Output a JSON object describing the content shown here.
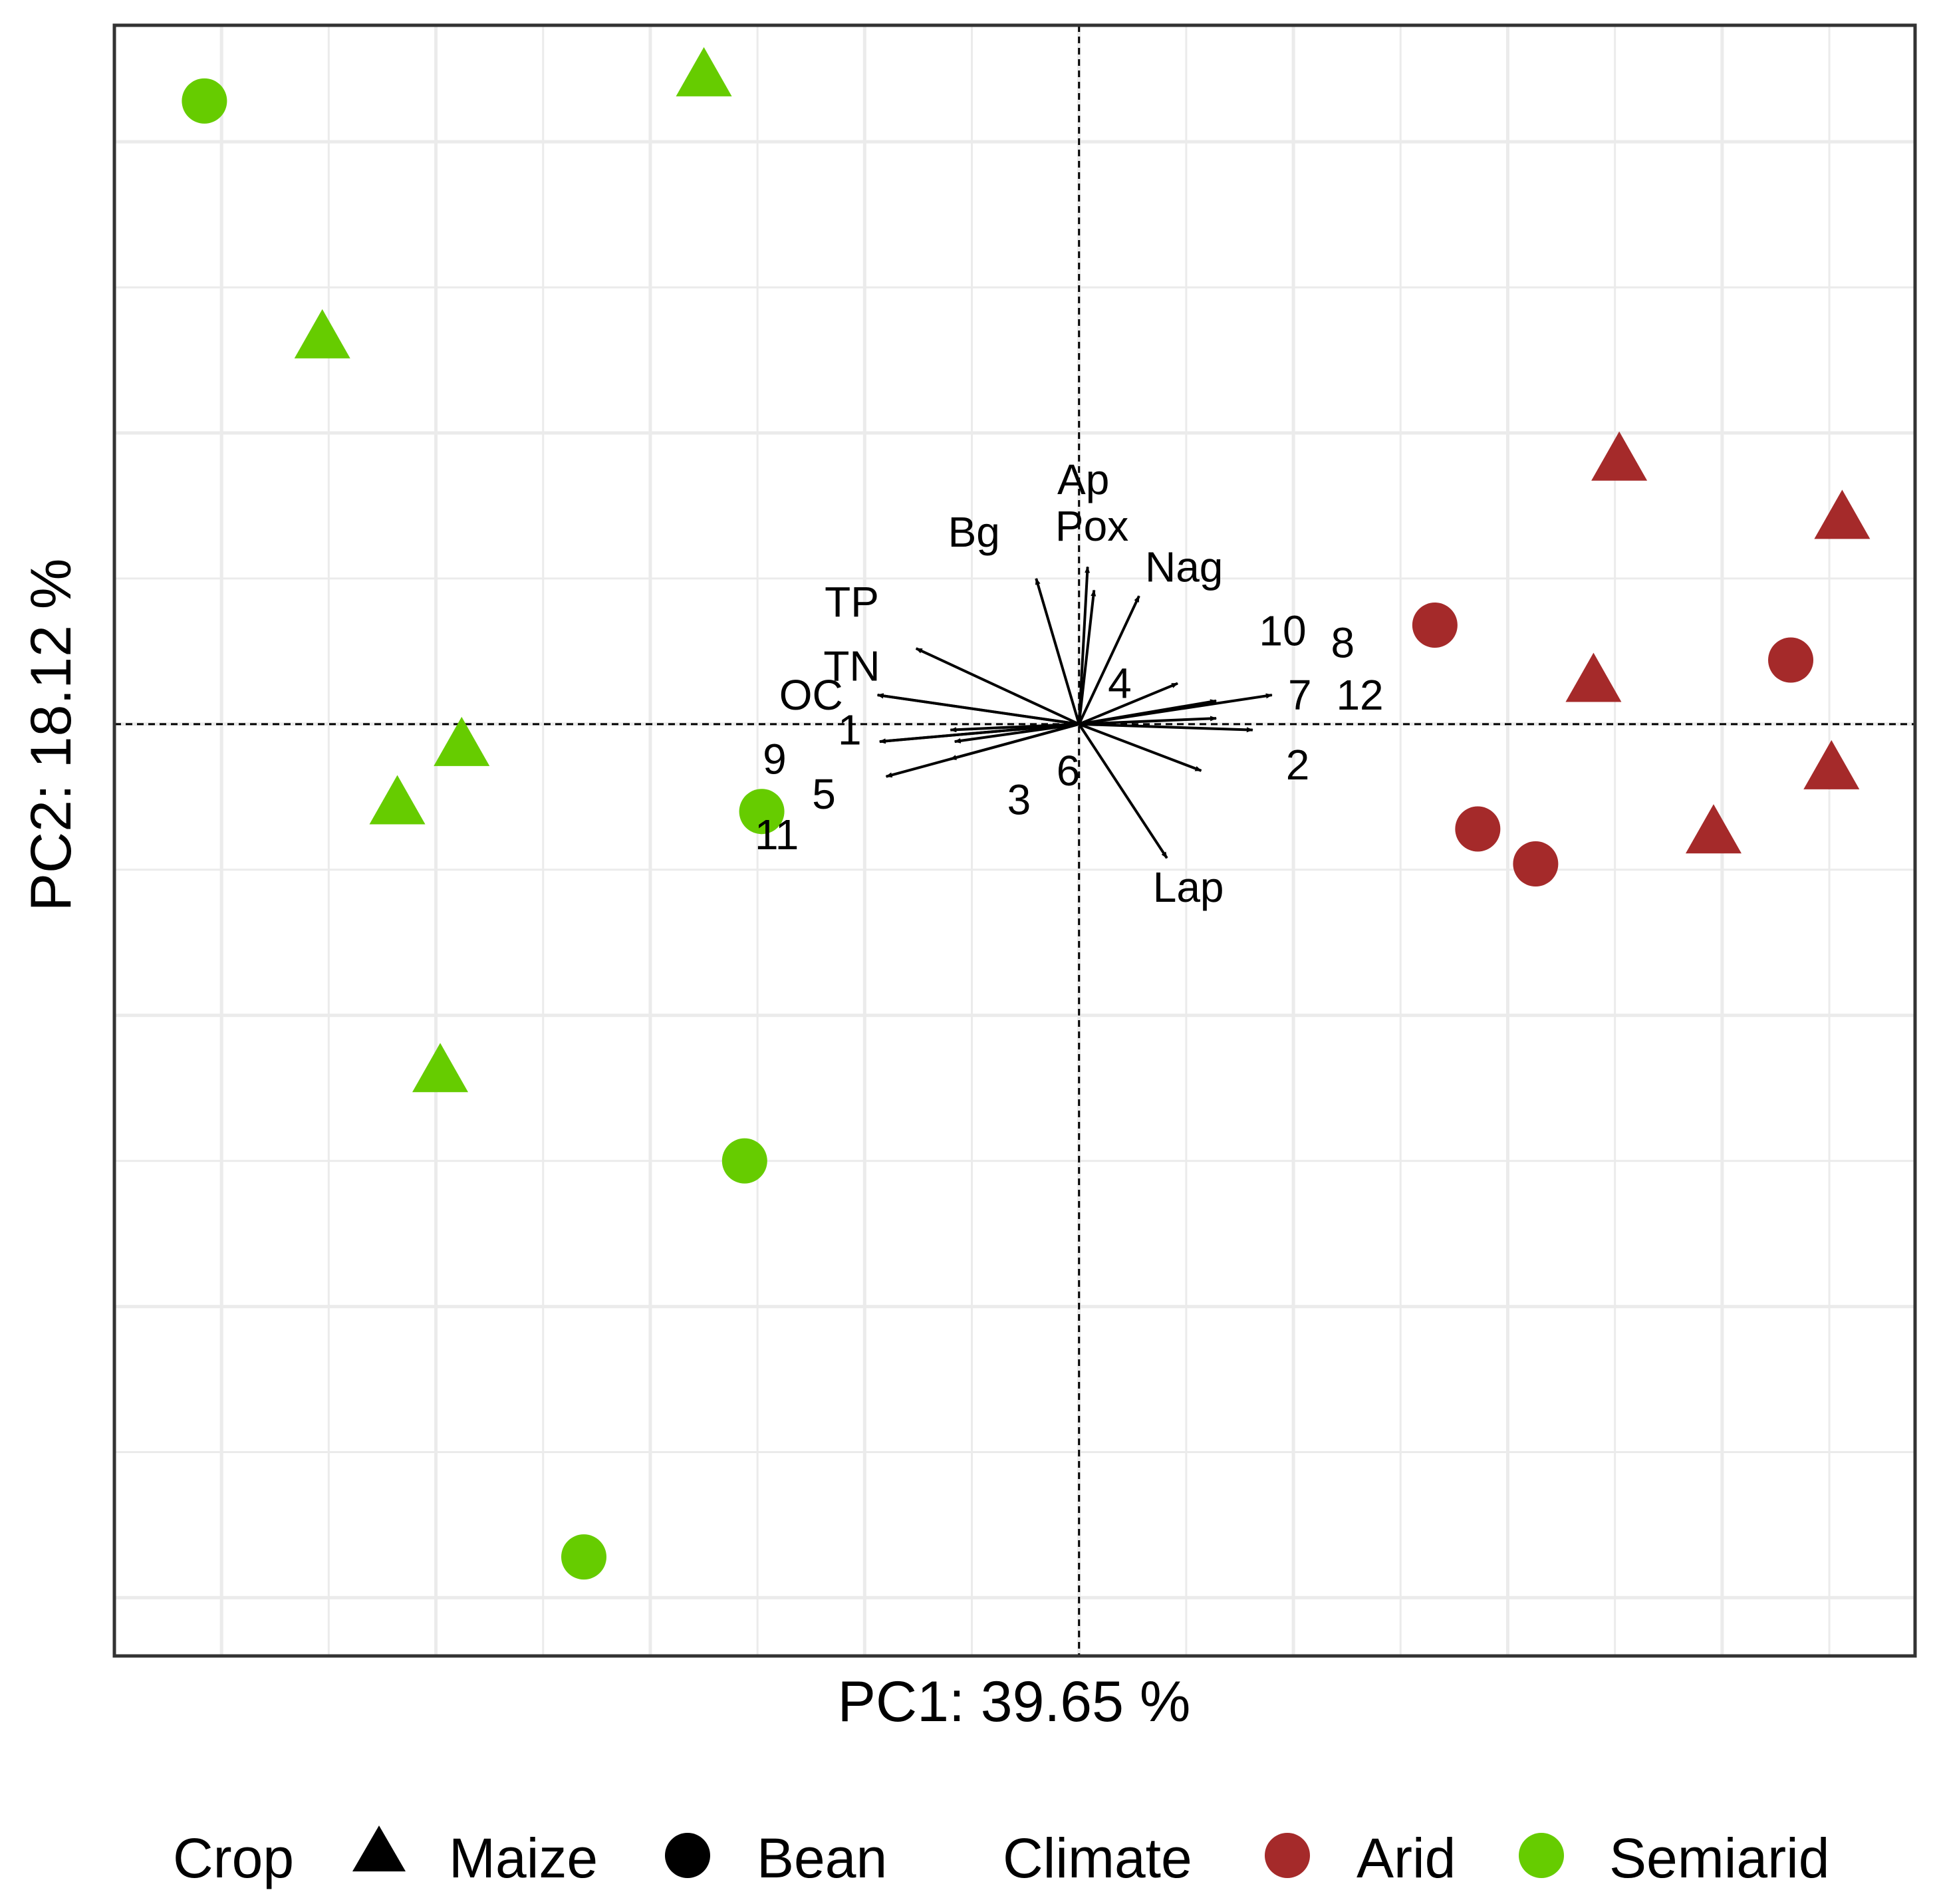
{
  "chart_data": {
    "type": "scatter",
    "subtype": "pca-biplot",
    "title": "",
    "xlabel": "PC1: 39.65 %",
    "ylabel": "PC2: 18.12 %",
    "xlim": [
      -4.5,
      3.9
    ],
    "ylim": [
      -1.6,
      1.2
    ],
    "grid": true,
    "reference_lines": {
      "x": 0,
      "y": 0,
      "style": "dashed"
    },
    "colors": {
      "Arid": "#a52a2a",
      "Semiarid": "#66cc00",
      "arrow": "#000000",
      "grid": "#ebebeb",
      "border": "#333333"
    },
    "legend": {
      "position": "bottom",
      "crop_title": "Crop",
      "crop_items": [
        {
          "label": "Maize",
          "shape": "triangle"
        },
        {
          "label": "Bean",
          "shape": "circle"
        }
      ],
      "climate_title": "Climate",
      "climate_items": [
        {
          "label": "Arid",
          "color": "#a52a2a"
        },
        {
          "label": "Semiarid",
          "color": "#66cc00"
        }
      ]
    },
    "points": [
      {
        "x": -4.08,
        "y": 1.07,
        "crop": "Bean",
        "climate": "Semiarid"
      },
      {
        "x": -1.75,
        "y": 1.11,
        "crop": "Maize",
        "climate": "Semiarid"
      },
      {
        "x": -3.53,
        "y": 0.66,
        "crop": "Maize",
        "climate": "Semiarid"
      },
      {
        "x": -2.88,
        "y": -0.04,
        "crop": "Maize",
        "climate": "Semiarid"
      },
      {
        "x": -3.18,
        "y": -0.14,
        "crop": "Maize",
        "climate": "Semiarid"
      },
      {
        "x": -1.48,
        "y": -0.15,
        "crop": "Bean",
        "climate": "Semiarid"
      },
      {
        "x": -2.98,
        "y": -0.6,
        "crop": "Maize",
        "climate": "Semiarid"
      },
      {
        "x": -1.56,
        "y": -0.75,
        "crop": "Bean",
        "climate": "Semiarid"
      },
      {
        "x": -2.31,
        "y": -1.43,
        "crop": "Bean",
        "climate": "Semiarid"
      },
      {
        "x": 2.52,
        "y": 0.45,
        "crop": "Maize",
        "climate": "Arid"
      },
      {
        "x": 3.56,
        "y": 0.35,
        "crop": "Maize",
        "climate": "Arid"
      },
      {
        "x": 1.66,
        "y": 0.17,
        "crop": "Bean",
        "climate": "Arid"
      },
      {
        "x": 3.32,
        "y": 0.11,
        "crop": "Bean",
        "climate": "Arid"
      },
      {
        "x": 2.4,
        "y": 0.07,
        "crop": "Maize",
        "climate": "Arid"
      },
      {
        "x": 3.51,
        "y": -0.08,
        "crop": "Maize",
        "climate": "Arid"
      },
      {
        "x": 2.96,
        "y": -0.19,
        "crop": "Maize",
        "climate": "Arid"
      },
      {
        "x": 1.86,
        "y": -0.18,
        "crop": "Bean",
        "climate": "Arid"
      },
      {
        "x": 2.13,
        "y": -0.24,
        "crop": "Bean",
        "climate": "Arid"
      }
    ],
    "loadings": [
      {
        "label": "Ap",
        "x": 0.04,
        "y": 0.27,
        "lx": 0.02,
        "ly": 0.42
      },
      {
        "label": "Pox",
        "x": 0.07,
        "y": 0.23,
        "lx": 0.06,
        "ly": 0.34
      },
      {
        "label": "Bg",
        "x": -0.2,
        "y": 0.25,
        "lx": -0.49,
        "ly": 0.33
      },
      {
        "label": "Nag",
        "x": 0.28,
        "y": 0.22,
        "lx": 0.49,
        "ly": 0.27
      },
      {
        "label": "TP",
        "x": -0.76,
        "y": 0.13,
        "lx": -1.06,
        "ly": 0.21
      },
      {
        "label": "TN",
        "x": -0.94,
        "y": 0.05,
        "lx": -1.06,
        "ly": 0.1
      },
      {
        "label": "OC",
        "x": -0.94,
        "y": 0.05,
        "lx": -1.25,
        "ly": 0.05
      },
      {
        "label": "1",
        "x": -0.93,
        "y": -0.03,
        "lx": -1.07,
        "ly": -0.01
      },
      {
        "label": "9",
        "x": -0.93,
        "y": -0.03,
        "lx": -1.42,
        "ly": -0.06
      },
      {
        "label": "5",
        "x": -0.9,
        "y": -0.09,
        "lx": -1.19,
        "ly": -0.12
      },
      {
        "label": "11",
        "x": -0.6,
        "y": -0.06,
        "lx": -1.41,
        "ly": -0.19
      },
      {
        "label": "3",
        "x": -0.58,
        "y": -0.03,
        "lx": -0.28,
        "ly": -0.13
      },
      {
        "label": "6",
        "x": -0.6,
        "y": -0.01,
        "lx": -0.05,
        "ly": -0.08
      },
      {
        "label": "4",
        "x": 0.46,
        "y": 0.07,
        "lx": 0.19,
        "ly": 0.07
      },
      {
        "label": "10",
        "x": 0.64,
        "y": 0.04,
        "lx": 0.95,
        "ly": 0.16
      },
      {
        "label": "8",
        "x": 0.9,
        "y": 0.05,
        "lx": 1.23,
        "ly": 0.14
      },
      {
        "label": "7",
        "x": 0.64,
        "y": 0.01,
        "lx": 1.03,
        "ly": 0.05
      },
      {
        "label": "12",
        "x": 0.81,
        "y": -0.01,
        "lx": 1.31,
        "ly": 0.05
      },
      {
        "label": "2",
        "x": 0.57,
        "y": -0.08,
        "lx": 1.02,
        "ly": -0.07
      },
      {
        "label": "Lap",
        "x": 0.41,
        "y": -0.23,
        "lx": 0.51,
        "ly": -0.28
      }
    ]
  }
}
